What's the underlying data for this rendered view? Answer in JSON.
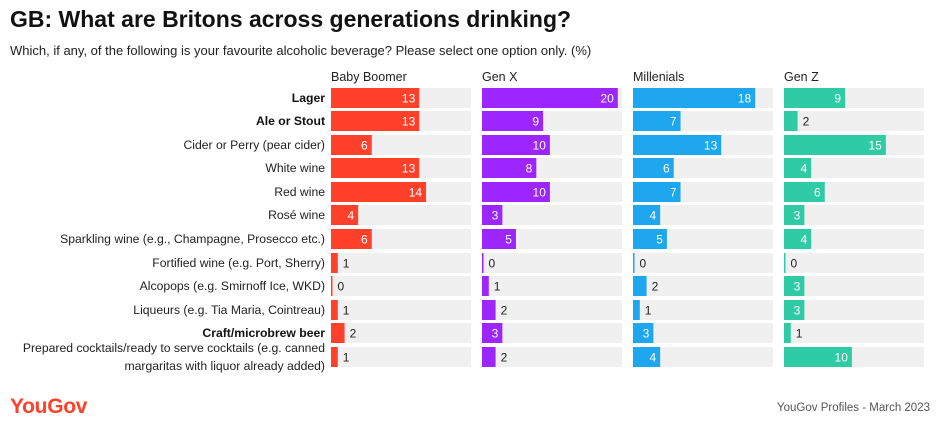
{
  "header": {
    "title": "GB: What are Britons across generations drinking?",
    "subtitle": "Which, if any, of the following is your favourite alcoholic beverage? Please select one option only. (%)"
  },
  "footer": {
    "logo": "YouGov",
    "source": "YouGov Profiles - March 2023"
  },
  "colors": {
    "track": "#f0f0f0",
    "baby_boomer": "#ff412c",
    "gen_x": "#9d26ff",
    "millenials": "#1ea7ee",
    "gen_z": "#2ecba4"
  },
  "chart_data": {
    "type": "bar",
    "orientation": "horizontal",
    "unit": "%",
    "xlim": [
      0,
      20
    ],
    "categories": [
      [
        "Lager"
      ],
      [
        "Ale or Stout"
      ],
      [
        "Cider or Perry (pear cider)"
      ],
      [
        "White wine"
      ],
      [
        "Red wine"
      ],
      [
        "Rosé wine"
      ],
      [
        "Sparkling wine (e.g., Champagne, Prosecco etc.)"
      ],
      [
        "Fortified wine (e.g. Port, Sherry)"
      ],
      [
        "Alcopops (e.g. Smirnoff Ice, WKD)"
      ],
      [
        "Liqueurs (e.g. Tia Maria, Cointreau)"
      ],
      [
        "Craft/microbrew beer"
      ],
      [
        "Prepared cocktails/ready to serve cocktails (e.g. canned",
        "margaritas with liquor already added)"
      ]
    ],
    "bold_categories": [
      "Lager",
      "Ale or Stout",
      "Craft/microbrew beer"
    ],
    "series": [
      {
        "name": "Baby Boomer",
        "color": "#ff412c",
        "values": [
          13,
          13,
          6,
          13,
          14,
          4,
          6,
          1,
          0,
          1,
          2,
          1
        ]
      },
      {
        "name": "Gen X",
        "color": "#9d26ff",
        "values": [
          20,
          9,
          10,
          8,
          10,
          3,
          5,
          0,
          1,
          2,
          3,
          2
        ]
      },
      {
        "name": "Millenials",
        "color": "#1ea7ee",
        "values": [
          18,
          7,
          13,
          6,
          7,
          4,
          5,
          0,
          2,
          1,
          3,
          4
        ]
      },
      {
        "name": "Gen Z",
        "color": "#2ecba4",
        "values": [
          9,
          2,
          15,
          4,
          6,
          3,
          4,
          0,
          3,
          3,
          1,
          10
        ]
      }
    ]
  }
}
